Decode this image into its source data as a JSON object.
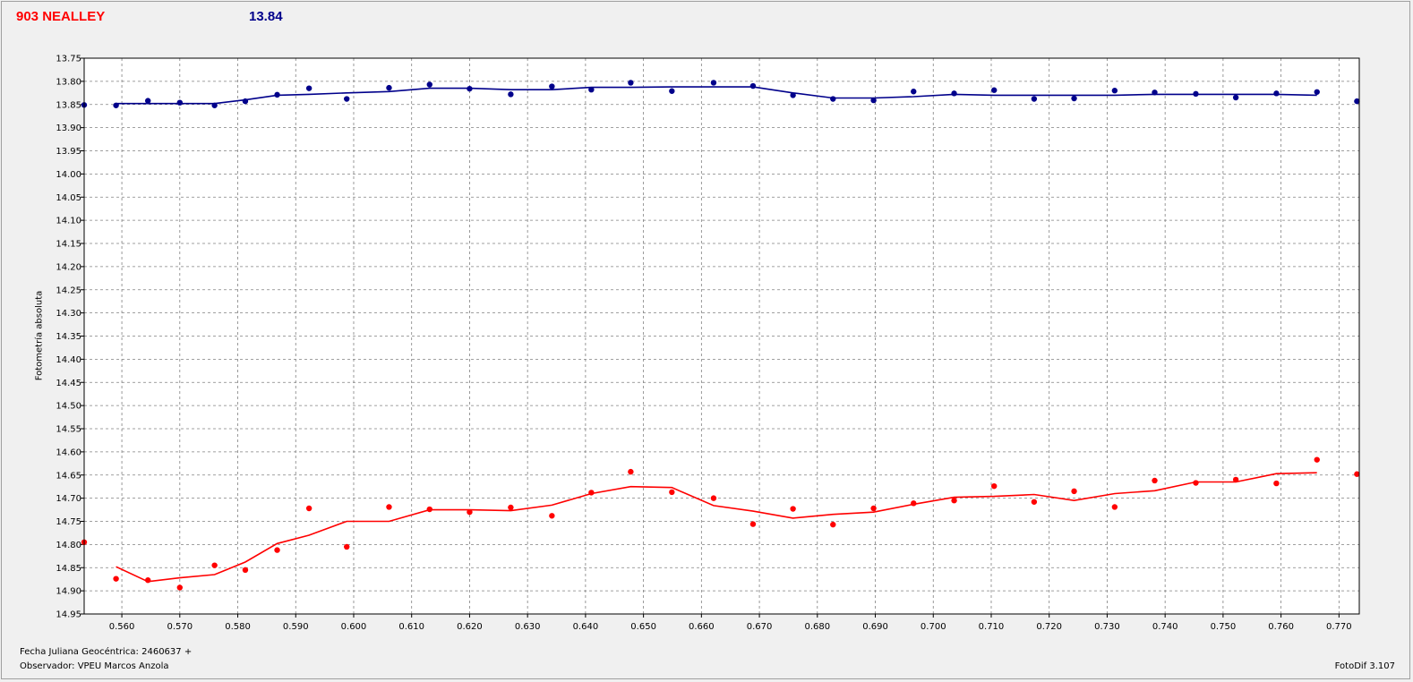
{
  "header": {
    "object_name": "903 NEALLEY",
    "mean_magnitude": "13.84"
  },
  "footer": {
    "julian_date": "Fecha Juliana Geocéntrica: 2460637 +",
    "observer": "Observador: VPEU Marcos Anzola",
    "version": "FotoDif 3.107"
  },
  "colors": {
    "comparison": "#00008b",
    "target": "#ff0000",
    "grid": "#808080"
  },
  "chart_data": {
    "type": "scatter",
    "title": "903 NEALLEY",
    "xlabel": "Fecha Juliana Geocéntrica: 2460637 +",
    "ylabel": "Fotometría absoluta",
    "xlim": [
      0.5535,
      0.7735
    ],
    "ylim": [
      14.95,
      13.75
    ],
    "y_inverted": true,
    "grid": true,
    "x_ticks": [
      "0.560",
      "0.570",
      "0.580",
      "0.590",
      "0.600",
      "0.610",
      "0.620",
      "0.630",
      "0.640",
      "0.650",
      "0.660",
      "0.670",
      "0.680",
      "0.690",
      "0.700",
      "0.710",
      "0.720",
      "0.730",
      "0.740",
      "0.750",
      "0.760",
      "0.770"
    ],
    "y_ticks": [
      "13.75",
      "13.80",
      "13.85",
      "13.90",
      "13.95",
      "14.00",
      "14.05",
      "14.10",
      "14.15",
      "14.20",
      "14.25",
      "14.30",
      "14.35",
      "14.40",
      "14.45",
      "14.50",
      "14.55",
      "14.60",
      "14.65",
      "14.70",
      "14.75",
      "14.80",
      "14.85",
      "14.90",
      "14.95"
    ],
    "series": [
      {
        "color": "#00008b",
        "x": [
          0.5535,
          0.559,
          0.5645,
          0.57,
          0.576,
          0.5813,
          0.5868,
          0.5923,
          0.5988,
          0.6061,
          0.6131,
          0.62,
          0.6271,
          0.6342,
          0.641,
          0.6478,
          0.6549,
          0.6621,
          0.6689,
          0.6758,
          0.6827,
          0.6897,
          0.6966,
          0.7036,
          0.7105,
          0.7174,
          0.7243,
          0.7313,
          0.7382,
          0.7453,
          0.7522,
          0.7592,
          0.7662,
          0.7731
        ],
        "points": [
          13.851,
          13.852,
          13.842,
          13.846,
          13.852,
          13.843,
          13.829,
          13.815,
          13.838,
          13.814,
          13.807,
          13.816,
          13.828,
          13.811,
          13.818,
          13.803,
          13.821,
          13.803,
          13.81,
          13.83,
          13.838,
          13.841,
          13.822,
          13.826,
          13.819,
          13.838,
          13.837,
          13.82,
          13.824,
          13.827,
          13.835,
          13.826,
          13.823,
          13.843
        ],
        "trend": [
          13.848,
          13.848,
          13.848,
          13.848,
          13.84,
          13.83,
          13.828,
          13.825,
          13.822,
          13.815,
          13.815,
          13.818,
          13.818,
          13.813,
          13.813,
          13.812,
          13.812,
          13.812,
          13.825,
          13.836,
          13.836,
          13.833,
          13.828,
          13.83,
          13.83,
          13.83,
          13.83,
          13.828,
          13.828,
          13.828,
          13.828,
          13.83
        ]
      },
      {
        "color": "#ff0000",
        "x": [
          0.5535,
          0.559,
          0.5645,
          0.57,
          0.576,
          0.5813,
          0.5868,
          0.5923,
          0.5988,
          0.6061,
          0.6131,
          0.62,
          0.6271,
          0.6342,
          0.641,
          0.6478,
          0.6549,
          0.6621,
          0.6689,
          0.6758,
          0.6827,
          0.6897,
          0.6966,
          0.7036,
          0.7105,
          0.7174,
          0.7243,
          0.7313,
          0.7382,
          0.7453,
          0.7522,
          0.7592,
          0.7662,
          0.7731
        ],
        "points": [
          14.795,
          14.874,
          14.877,
          14.893,
          14.845,
          14.855,
          14.812,
          14.722,
          14.805,
          14.719,
          14.724,
          14.73,
          14.72,
          14.738,
          14.688,
          14.643,
          14.687,
          14.7,
          14.756,
          14.723,
          14.757,
          14.722,
          14.711,
          14.705,
          14.674,
          14.708,
          14.685,
          14.719,
          14.662,
          14.667,
          14.66,
          14.668,
          14.617,
          14.648
        ],
        "trend": [
          14.848,
          14.88,
          14.872,
          14.865,
          14.838,
          14.798,
          14.78,
          14.75,
          14.75,
          14.725,
          14.725,
          14.727,
          14.715,
          14.69,
          14.675,
          14.677,
          14.716,
          14.728,
          14.743,
          14.735,
          14.73,
          14.713,
          14.698,
          14.696,
          14.692,
          14.705,
          14.69,
          14.684,
          14.665,
          14.665,
          14.647,
          14.645
        ]
      }
    ]
  }
}
